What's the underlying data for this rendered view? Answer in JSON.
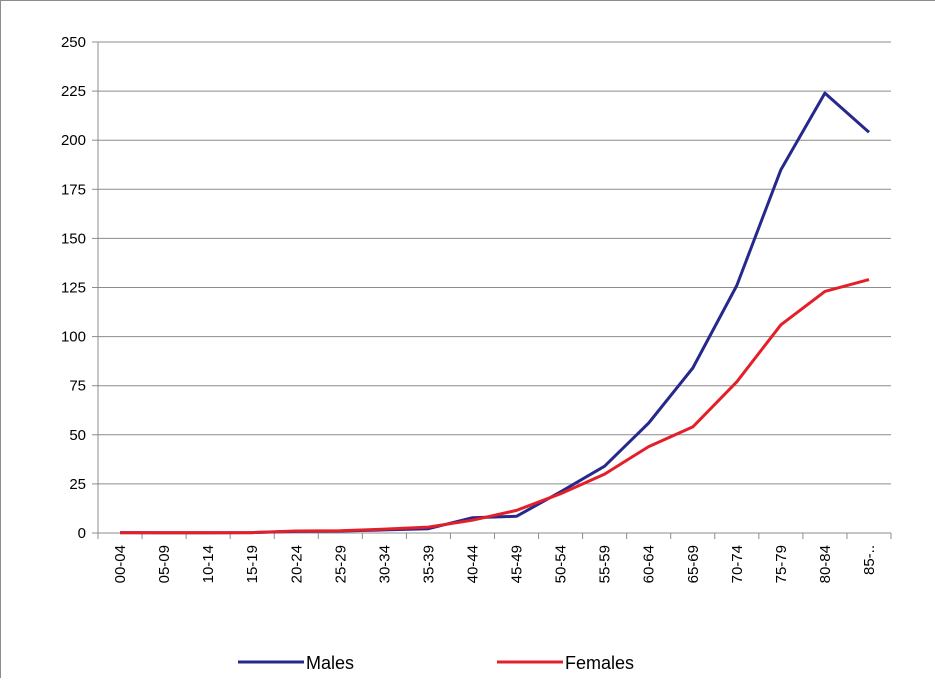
{
  "chart_data": {
    "type": "line",
    "categories": [
      "00-04",
      "05-09",
      "10-14",
      "15-19",
      "20-24",
      "25-29",
      "30-34",
      "35-39",
      "40-44",
      "45-49",
      "50-54",
      "55-59",
      "60-64",
      "65-69",
      "70-74",
      "75-79",
      "80-84",
      "85-.."
    ],
    "series": [
      {
        "name": "Males",
        "color": "#26288c",
        "values": [
          0.2,
          0.1,
          0.1,
          0.2,
          0.8,
          1.0,
          1.6,
          2.2,
          7.8,
          8.5,
          21,
          34,
          56,
          84,
          126,
          185,
          224,
          204
        ]
      },
      {
        "name": "Females",
        "color": "#e3202a",
        "values": [
          0.1,
          0.1,
          0.1,
          0.2,
          1.0,
          1.1,
          2.0,
          3.0,
          6.5,
          11.5,
          20,
          30,
          44,
          54,
          77,
          106,
          123,
          129
        ]
      }
    ],
    "yticks": [
      "0",
      "25",
      "50",
      "75",
      "100",
      "125",
      "150",
      "175",
      "200",
      "225",
      "250"
    ],
    "ylim": [
      0,
      250
    ],
    "grid": true,
    "legend_position": "bottom",
    "title": "",
    "xlabel": "",
    "ylabel": ""
  }
}
